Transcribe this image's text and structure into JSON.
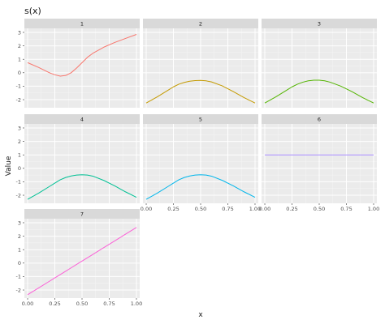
{
  "chart_data": {
    "type": "line",
    "title": "s(x)",
    "xlabel": "x",
    "ylabel": "Value",
    "xlim": [
      -0.03,
      1.03
    ],
    "ylim": [
      -2.6,
      3.3
    ],
    "x_ticks": [
      "0.00",
      "0.25",
      "0.50",
      "0.75",
      "1.00"
    ],
    "x_tick_values": [
      0,
      0.25,
      0.5,
      0.75,
      1
    ],
    "y_ticks": [
      "-2",
      "-1",
      "0",
      "1",
      "2",
      "3"
    ],
    "y_tick_values": [
      -2,
      -1,
      0,
      1,
      2,
      3
    ],
    "grid": true,
    "x": [
      0,
      0.1,
      0.2,
      0.25,
      0.3,
      0.35,
      0.4,
      0.45,
      0.5,
      0.55,
      0.6,
      0.7,
      0.8,
      0.9,
      1.0
    ],
    "series": [
      {
        "panel": "1",
        "color": "#F8766D",
        "values": [
          0.75,
          0.4,
          0.0,
          -0.15,
          -0.25,
          -0.2,
          0.0,
          0.35,
          0.75,
          1.15,
          1.45,
          1.9,
          2.25,
          2.55,
          2.85
        ]
      },
      {
        "panel": "2",
        "color": "#C49A00",
        "values": [
          -2.25,
          -1.8,
          -1.3,
          -1.05,
          -0.85,
          -0.72,
          -0.63,
          -0.58,
          -0.57,
          -0.6,
          -0.68,
          -0.98,
          -1.4,
          -1.85,
          -2.25
        ]
      },
      {
        "panel": "3",
        "color": "#53B400",
        "values": [
          -2.25,
          -1.8,
          -1.3,
          -1.05,
          -0.85,
          -0.7,
          -0.6,
          -0.55,
          -0.55,
          -0.6,
          -0.7,
          -1.0,
          -1.4,
          -1.85,
          -2.25
        ]
      },
      {
        "panel": "4",
        "color": "#00C094",
        "values": [
          -2.3,
          -1.85,
          -1.35,
          -1.1,
          -0.85,
          -0.68,
          -0.57,
          -0.5,
          -0.48,
          -0.5,
          -0.58,
          -0.9,
          -1.3,
          -1.75,
          -2.15
        ]
      },
      {
        "panel": "5",
        "color": "#00B6EB",
        "values": [
          -2.3,
          -1.85,
          -1.35,
          -1.1,
          -0.85,
          -0.68,
          -0.57,
          -0.5,
          -0.48,
          -0.5,
          -0.58,
          -0.9,
          -1.3,
          -1.75,
          -2.15
        ]
      },
      {
        "panel": "6",
        "color": "#A58AFF",
        "values": [
          1,
          1,
          1,
          1,
          1,
          1,
          1,
          1,
          1,
          1,
          1,
          1,
          1,
          1,
          1
        ]
      },
      {
        "panel": "7",
        "color": "#FB61D7",
        "values": [
          -2.35,
          -1.85,
          -1.35,
          -1.1,
          -0.85,
          -0.6,
          -0.35,
          -0.1,
          0.15,
          0.4,
          0.65,
          1.15,
          1.65,
          2.15,
          2.65
        ]
      }
    ]
  }
}
